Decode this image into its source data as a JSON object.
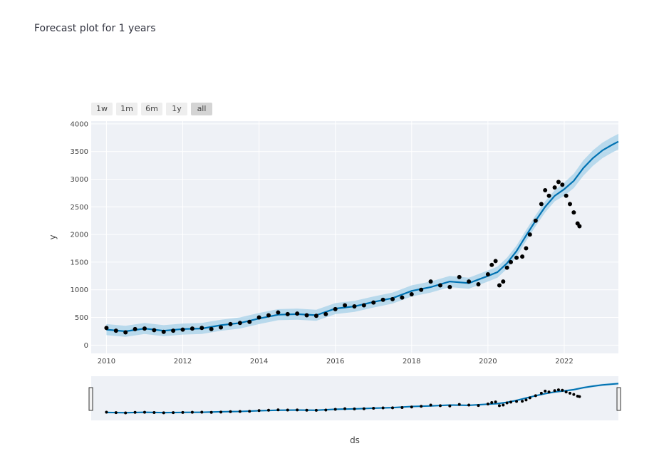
{
  "page": {
    "title": "Forecast plot for 1 years"
  },
  "range_buttons": [
    {
      "label": "1w",
      "active": false
    },
    {
      "label": "1m",
      "active": false
    },
    {
      "label": "6m",
      "active": false
    },
    {
      "label": "1y",
      "active": false
    },
    {
      "label": "all",
      "active": true
    }
  ],
  "colors": {
    "forecast": "#0072b2",
    "band": "#a6d0e8",
    "observed": "#000000",
    "plot_bg": "#eef1f6",
    "grid": "#ffffff"
  },
  "chart_data": {
    "type": "line",
    "xlabel": "ds",
    "ylabel": "y",
    "xlim": [
      2009.6,
      2023.42
    ],
    "ylim": [
      -150,
      4050
    ],
    "x_ticks": [
      2010,
      2012,
      2014,
      2016,
      2018,
      2020,
      2022
    ],
    "x_tick_labels": [
      "2010",
      "2012",
      "2014",
      "2016",
      "2018",
      "2020",
      "2022"
    ],
    "y_ticks": [
      0,
      500,
      1000,
      1500,
      2000,
      2500,
      3000,
      3500,
      4000
    ],
    "y_tick_labels": [
      "0",
      "500",
      "1000",
      "1500",
      "2000",
      "2500",
      "3000",
      "3500",
      "4000"
    ],
    "grid": true,
    "legend": "none",
    "range_slider": true,
    "series": [
      {
        "kind": "forecast",
        "x": [
          2010.0,
          2010.5,
          2011.0,
          2011.5,
          2012.0,
          2012.5,
          2013.0,
          2013.5,
          2014.0,
          2014.5,
          2015.0,
          2015.5,
          2016.0,
          2016.5,
          2017.0,
          2017.5,
          2018.0,
          2018.5,
          2019.0,
          2019.5,
          2020.0,
          2020.25,
          2020.5,
          2020.75,
          2021.0,
          2021.25,
          2021.5,
          2021.75,
          2022.0,
          2022.25,
          2022.5,
          2022.75,
          2023.0,
          2023.25,
          2023.42
        ],
        "values": [
          280,
          250,
          300,
          260,
          290,
          300,
          360,
          400,
          480,
          550,
          560,
          540,
          660,
          700,
          780,
          850,
          980,
          1050,
          1150,
          1120,
          1250,
          1320,
          1480,
          1700,
          1980,
          2250,
          2500,
          2700,
          2820,
          2970,
          3200,
          3380,
          3520,
          3620,
          3680
        ]
      },
      {
        "kind": "uncertainty",
        "x": [
          2010.0,
          2010.5,
          2011.0,
          2011.5,
          2012.0,
          2012.5,
          2013.0,
          2013.5,
          2014.0,
          2014.5,
          2015.0,
          2015.5,
          2016.0,
          2016.5,
          2017.0,
          2017.5,
          2018.0,
          2018.5,
          2019.0,
          2019.5,
          2020.0,
          2020.25,
          2020.5,
          2020.75,
          2021.0,
          2021.25,
          2021.5,
          2021.75,
          2022.0,
          2022.25,
          2022.5,
          2022.75,
          2023.0,
          2023.25,
          2023.42
        ],
        "lower": [
          180,
          150,
          200,
          160,
          190,
          200,
          260,
          300,
          380,
          450,
          460,
          440,
          560,
          600,
          680,
          750,
          880,
          950,
          1050,
          1020,
          1150,
          1220,
          1380,
          1600,
          1880,
          2150,
          2400,
          2600,
          2700,
          2840,
          3060,
          3240,
          3380,
          3480,
          3540
        ],
        "upper": [
          380,
          350,
          400,
          360,
          390,
          400,
          460,
          500,
          580,
          650,
          660,
          640,
          760,
          800,
          880,
          950,
          1080,
          1150,
          1250,
          1220,
          1350,
          1420,
          1580,
          1800,
          2080,
          2350,
          2600,
          2800,
          2940,
          3100,
          3340,
          3520,
          3660,
          3760,
          3820
        ]
      },
      {
        "kind": "observed",
        "x": [
          2010.0,
          2010.25,
          2010.5,
          2010.75,
          2011.0,
          2011.25,
          2011.5,
          2011.75,
          2012.0,
          2012.25,
          2012.5,
          2012.75,
          2013.0,
          2013.25,
          2013.5,
          2013.75,
          2014.0,
          2014.25,
          2014.5,
          2014.75,
          2015.0,
          2015.25,
          2015.5,
          2015.75,
          2016.0,
          2016.25,
          2016.5,
          2016.75,
          2017.0,
          2017.25,
          2017.5,
          2017.75,
          2018.0,
          2018.25,
          2018.5,
          2018.75,
          2019.0,
          2019.25,
          2019.5,
          2019.75,
          2020.0,
          2020.1,
          2020.2,
          2020.3,
          2020.4,
          2020.5,
          2020.6,
          2020.75,
          2020.9,
          2021.0,
          2021.1,
          2021.25,
          2021.4,
          2021.5,
          2021.6,
          2021.75,
          2021.85,
          2021.95,
          2022.05,
          2022.15,
          2022.25,
          2022.35,
          2022.4
        ],
        "values": [
          310,
          260,
          230,
          290,
          300,
          270,
          240,
          260,
          280,
          300,
          310,
          290,
          320,
          380,
          400,
          420,
          500,
          540,
          590,
          560,
          570,
          540,
          530,
          560,
          650,
          720,
          700,
          720,
          770,
          820,
          830,
          860,
          920,
          1000,
          1150,
          1080,
          1050,
          1230,
          1150,
          1100,
          1280,
          1450,
          1520,
          1080,
          1150,
          1400,
          1500,
          1580,
          1600,
          1750,
          2000,
          2250,
          2550,
          2800,
          2700,
          2850,
          2950,
          2900,
          2700,
          2550,
          2400,
          2200,
          2150
        ]
      }
    ]
  }
}
